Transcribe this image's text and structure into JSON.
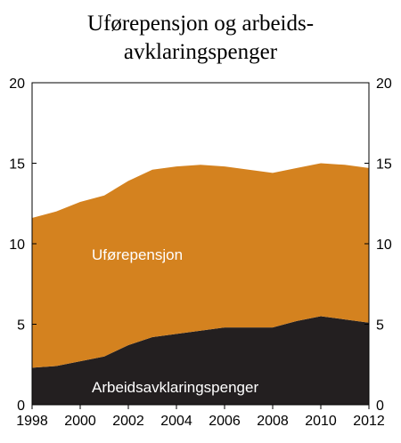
{
  "chart_data": {
    "type": "area",
    "stacked": true,
    "title_lines": [
      "Uførepensjon og arbeids-",
      "avklaringspenger"
    ],
    "xlabel": "",
    "ylabel": "",
    "xlim": [
      1998,
      2012
    ],
    "ylim": [
      0,
      20
    ],
    "x_ticks": [
      "1998",
      "2000",
      "2002",
      "2004",
      "2006",
      "2008",
      "2010",
      "2012"
    ],
    "y_ticks": [
      "0",
      "5",
      "10",
      "15",
      "20"
    ],
    "grid": false,
    "x": [
      1998,
      1999,
      2000,
      2001,
      2002,
      2003,
      2004,
      2005,
      2006,
      2007,
      2008,
      2009,
      2010,
      2011,
      2012
    ],
    "series": [
      {
        "name": "Arbeidsavklaringspenger",
        "color": "#231f20",
        "label_color": "#ffffff",
        "values": [
          2.3,
          2.4,
          2.7,
          3.0,
          3.7,
          4.2,
          4.4,
          4.6,
          4.8,
          4.8,
          4.8,
          5.2,
          5.5,
          5.3,
          5.1
        ]
      },
      {
        "name": "Uførepensjon",
        "color": "#d4821f",
        "label_color": "#ffffff",
        "values": [
          9.3,
          9.6,
          9.9,
          10.0,
          10.2,
          10.4,
          10.4,
          10.3,
          10.0,
          9.8,
          9.6,
          9.5,
          9.5,
          9.6,
          9.6
        ]
      }
    ]
  }
}
